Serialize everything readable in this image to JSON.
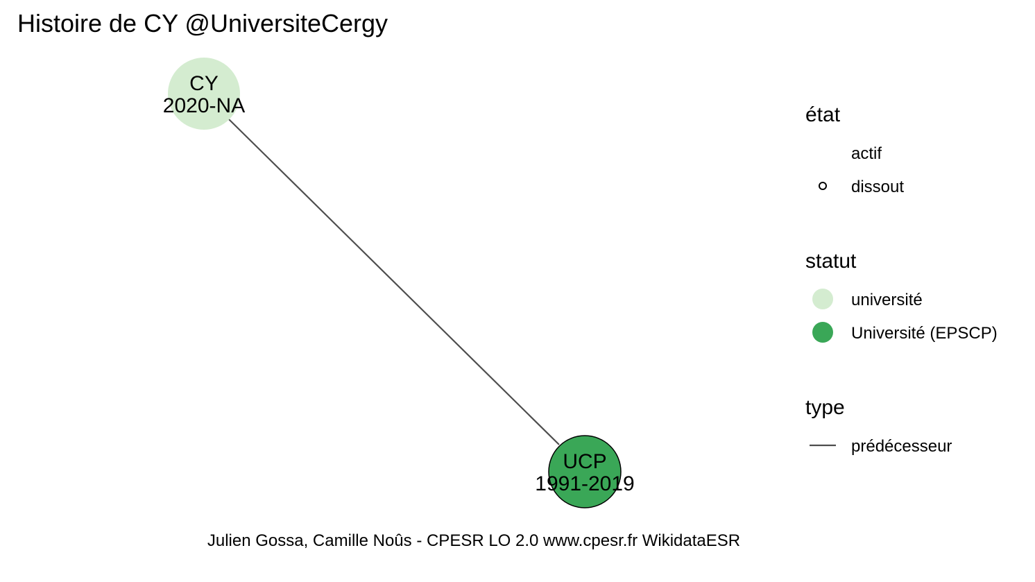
{
  "title": "Histoire de CY @UniversiteCergy",
  "caption": "Julien Gossa, Camille Noûs - CPESR LO 2.0 www.cpesr.fr WikidataESR",
  "colors": {
    "universite": "#d4ecd0",
    "epscp": "#3aa757",
    "edge": "#4d4d4d",
    "outline": "#000000"
  },
  "nodes": [
    {
      "id": "cy",
      "name": "CY",
      "years": "2020-NA",
      "statut": "université",
      "etat": "actif"
    },
    {
      "id": "ucp",
      "name": "UCP",
      "years": "1991-2019",
      "statut": "Université (EPSCP)",
      "etat": "dissout"
    }
  ],
  "edges": [
    {
      "from": "ucp",
      "to": "cy",
      "type": "prédécesseur"
    }
  ],
  "legend": {
    "etat": {
      "title": "état",
      "items": [
        "actif",
        "dissout"
      ]
    },
    "statut": {
      "title": "statut",
      "items": [
        "université",
        "Université (EPSCP)"
      ]
    },
    "type": {
      "title": "type",
      "items": [
        "prédécesseur"
      ]
    }
  }
}
